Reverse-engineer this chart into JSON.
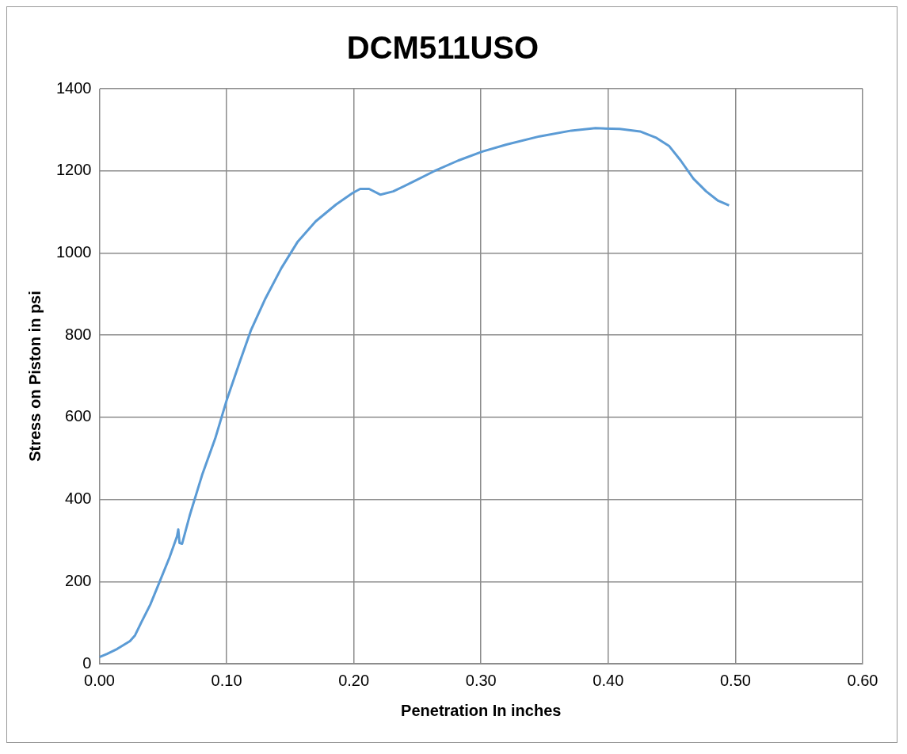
{
  "chart_data": {
    "type": "line",
    "title": "DCM511USO",
    "xlabel": "Penetration In inches",
    "ylabel": "Stress on Piston in psi",
    "xlim": [
      0,
      0.6
    ],
    "xticks": [
      {
        "value": 0,
        "label": "0.00"
      },
      {
        "value": 0.1,
        "label": "0.10"
      },
      {
        "value": 0.2,
        "label": "0.20"
      },
      {
        "value": 0.3,
        "label": "0.30"
      },
      {
        "value": 0.4,
        "label": "0.40"
      },
      {
        "value": 0.5,
        "label": "0.50"
      },
      {
        "value": 0.6,
        "label": "0.60"
      }
    ],
    "ylim": [
      0,
      1400
    ],
    "yticks": [
      0,
      200,
      400,
      600,
      800,
      1000,
      1200,
      1400
    ],
    "grid": true,
    "marker": "none",
    "line_style": "solid",
    "series": [
      {
        "color": "#5b9bd5",
        "x": [
          0,
          0.006,
          0.014,
          0.024,
          0.028,
          0.033,
          0.04,
          0.047,
          0.055,
          0.061,
          0.062,
          0.063,
          0.065,
          0.071,
          0.081,
          0.091,
          0.1,
          0.11,
          0.119,
          0.13,
          0.143,
          0.156,
          0.17,
          0.186,
          0.199,
          0.205,
          0.212,
          0.221,
          0.231,
          0.247,
          0.263,
          0.282,
          0.301,
          0.32,
          0.346,
          0.371,
          0.39,
          0.409,
          0.425,
          0.438,
          0.448,
          0.457,
          0.467,
          0.477,
          0.486,
          0.495
        ],
        "values": [
          16,
          24,
          36,
          55,
          69,
          101,
          144,
          197,
          258,
          310,
          327,
          294,
          292,
          361,
          462,
          548,
          641,
          732,
          811,
          886,
          963,
          1028,
          1077,
          1118,
          1146,
          1156,
          1156,
          1142,
          1150,
          1174,
          1199,
          1225,
          1247,
          1264,
          1284,
          1298,
          1304,
          1302,
          1296,
          1280,
          1260,
          1225,
          1181,
          1150,
          1128,
          1116
        ]
      }
    ]
  }
}
